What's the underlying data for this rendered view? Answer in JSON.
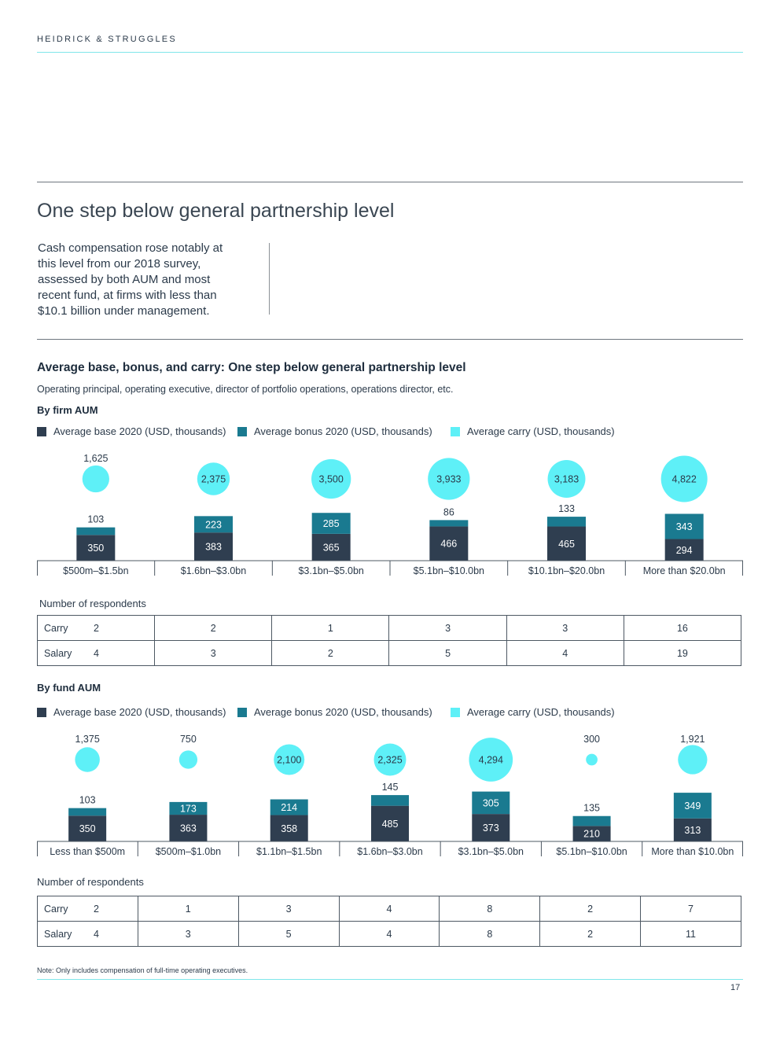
{
  "header": {
    "brand": "HEIDRICK & STRUGGLES"
  },
  "page": {
    "title": "One step below general partnership level",
    "intro": "Cash compensation rose notably at this level from our 2018 survey, assessed by both AUM and most recent fund, at firms with less than $10.1 billion under management.",
    "note": "Note: Only includes compensation of full-time operating executives.",
    "page_number": "17"
  },
  "chart_header": {
    "title": "Average base, bonus, and carry: One step below general partnership level",
    "subtitle": "Operating principal, operating executive, director of portfolio operations, operations director, etc."
  },
  "legend": {
    "base": "Average base 2020 (USD, thousands)",
    "bonus": "Average bonus 2020 (USD, thousands)",
    "carry": "Average carry (USD, thousands)"
  },
  "colors": {
    "base": "#2f3e50",
    "bonus": "#1a7a90",
    "carry": "#5ef0f7"
  },
  "respondents_label": "Number of respondents",
  "chart_data": [
    {
      "type": "bar",
      "title": "By firm AUM",
      "categories": [
        "$500m–$1.5bn",
        "$1.6bn–$3.0bn",
        "$3.1bn–$5.0bn",
        "$5.1bn–$10.0bn",
        "$10.1bn–$20.0bn",
        "More than $20.0bn"
      ],
      "series": [
        {
          "name": "Average base 2020 (USD, thousands)",
          "values": [
            350,
            383,
            365,
            466,
            465,
            294
          ]
        },
        {
          "name": "Average bonus 2020 (USD, thousands)",
          "values": [
            103,
            223,
            285,
            86,
            133,
            343
          ]
        },
        {
          "name": "Average carry (USD, thousands)",
          "values": [
            1625,
            2375,
            3500,
            3933,
            3183,
            4822
          ]
        }
      ],
      "respondents": {
        "carry": [
          2,
          2,
          1,
          3,
          3,
          16
        ],
        "salary": [
          4,
          3,
          2,
          5,
          4,
          19
        ]
      }
    },
    {
      "type": "bar",
      "title": "By fund AUM",
      "categories": [
        "Less than $500m",
        "$500m–$1.0bn",
        "$1.1bn–$1.5bn",
        "$1.6bn–$3.0bn",
        "$3.1bn–$5.0bn",
        "$5.1bn–$10.0bn",
        "More than $10.0bn"
      ],
      "series": [
        {
          "name": "Average base 2020 (USD, thousands)",
          "values": [
            350,
            363,
            358,
            485,
            373,
            210,
            313
          ]
        },
        {
          "name": "Average bonus 2020 (USD, thousands)",
          "values": [
            103,
            173,
            214,
            145,
            305,
            135,
            349
          ]
        },
        {
          "name": "Average carry (USD, thousands)",
          "values": [
            1375,
            750,
            2100,
            2325,
            4294,
            300,
            1921
          ]
        }
      ],
      "respondents": {
        "carry": [
          2,
          1,
          3,
          4,
          8,
          2,
          7
        ],
        "salary": [
          4,
          3,
          5,
          4,
          8,
          2,
          11
        ]
      }
    }
  ],
  "table_rows": {
    "carry": "Carry",
    "salary": "Salary"
  }
}
